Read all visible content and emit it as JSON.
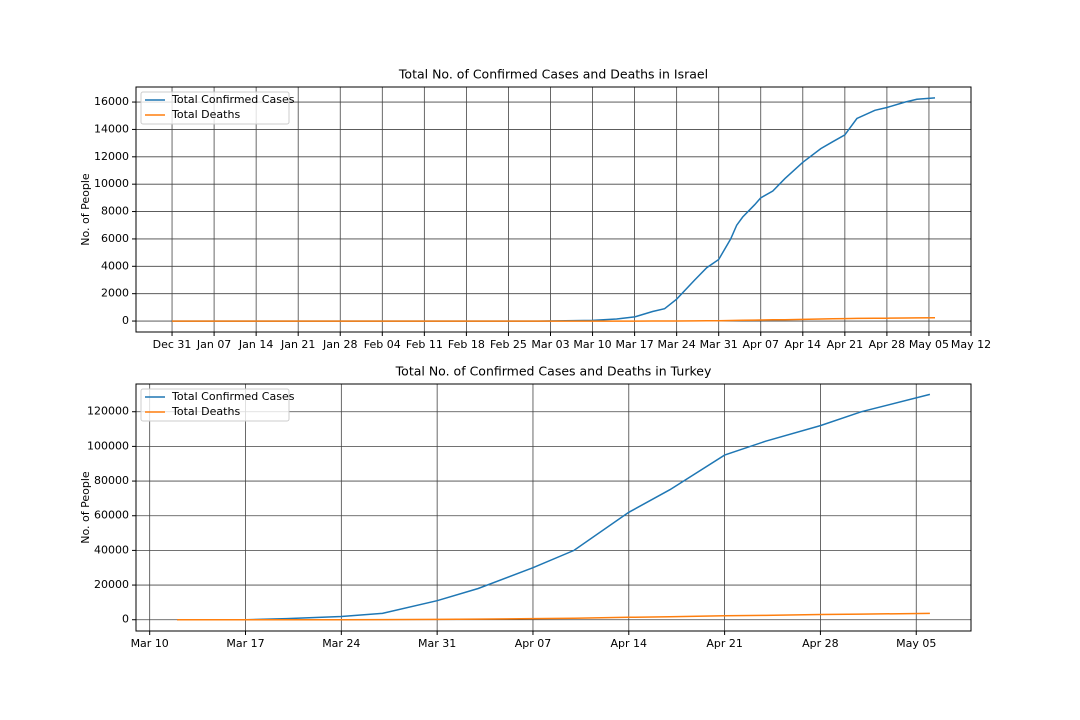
{
  "chart_data": [
    {
      "type": "line",
      "title": "Total No. of Confirmed Cases and Deaths in Israel",
      "ylabel": "No. of People",
      "x": [
        "Dec 31",
        "Feb 01",
        "Mar 01",
        "Mar 10",
        "Mar 14",
        "Mar 17",
        "Mar 20",
        "Mar 22",
        "Mar 24",
        "Mar 27",
        "Mar 29",
        "Mar 31",
        "Apr 02",
        "Apr 03",
        "Apr 04",
        "Apr 06",
        "Apr 07",
        "Apr 09",
        "Apr 11",
        "Apr 14",
        "Apr 17",
        "Apr 19",
        "Apr 21",
        "Apr 23",
        "Apr 26",
        "Apr 28",
        "May 01",
        "May 03",
        "May 06"
      ],
      "series": [
        {
          "name": "Total Confirmed Cases",
          "color": "#1f77b4",
          "values": [
            0,
            0,
            0,
            50,
            150,
            300,
            700,
            900,
            1600,
            3000,
            3900,
            4500,
            6000,
            7000,
            7600,
            8500,
            9000,
            9500,
            10400,
            11600,
            12600,
            13100,
            13600,
            14800,
            15400,
            15600,
            16000,
            16200,
            16300
          ]
        },
        {
          "name": "Total Deaths",
          "color": "#ff7f0e",
          "values": [
            0,
            0,
            0,
            0,
            0,
            0,
            1,
            1,
            5,
            12,
            15,
            20,
            40,
            50,
            60,
            70,
            80,
            90,
            100,
            120,
            150,
            170,
            180,
            190,
            200,
            210,
            220,
            230,
            235
          ]
        }
      ],
      "xlim": [
        "Dec 25",
        "May 12"
      ],
      "xticks": [
        "Dec 31",
        "Jan 07",
        "Jan 14",
        "Jan 21",
        "Jan 28",
        "Feb 04",
        "Feb 11",
        "Feb 18",
        "Feb 25",
        "Mar 03",
        "Mar 10",
        "Mar 17",
        "Mar 24",
        "Mar 31",
        "Apr 07",
        "Apr 14",
        "Apr 21",
        "Apr 28",
        "May 05",
        "May 12"
      ],
      "ylim": [
        -800,
        17100
      ],
      "yticks": [
        0,
        2000,
        4000,
        6000,
        8000,
        10000,
        12000,
        14000,
        16000
      ],
      "grid": true,
      "legend": "upper-left"
    },
    {
      "type": "line",
      "title": "Total No. of Confirmed Cases and Deaths in Turkey",
      "ylabel": "No. of People",
      "x": [
        "Mar 12",
        "Mar 17",
        "Mar 20",
        "Mar 24",
        "Mar 27",
        "Mar 31",
        "Apr 03",
        "Apr 07",
        "Apr 10",
        "Apr 14",
        "Apr 17",
        "Apr 21",
        "Apr 24",
        "Apr 28",
        "May 01",
        "May 06"
      ],
      "series": [
        {
          "name": "Total Confirmed Cases",
          "color": "#1f77b4",
          "values": [
            1,
            47,
            670,
            1872,
            3629,
            11000,
            18000,
            30000,
            40000,
            62000,
            75000,
            95000,
            103000,
            112000,
            120000,
            130000
          ]
        },
        {
          "name": "Total Deaths",
          "color": "#ff7f0e",
          "values": [
            0,
            1,
            9,
            44,
            75,
            214,
            356,
            649,
            908,
            1403,
            1769,
            2259,
            2491,
            2992,
            3258,
            3641
          ]
        }
      ],
      "xlim": [
        "Mar 09",
        "May 09"
      ],
      "xticks": [
        "Mar 10",
        "Mar 17",
        "Mar 24",
        "Mar 31",
        "Apr 07",
        "Apr 14",
        "Apr 21",
        "Apr 28",
        "May 05"
      ],
      "ylim": [
        -6500,
        136000
      ],
      "yticks": [
        0,
        20000,
        40000,
        60000,
        80000,
        100000,
        120000
      ],
      "grid": true,
      "legend": "upper-left"
    }
  ]
}
